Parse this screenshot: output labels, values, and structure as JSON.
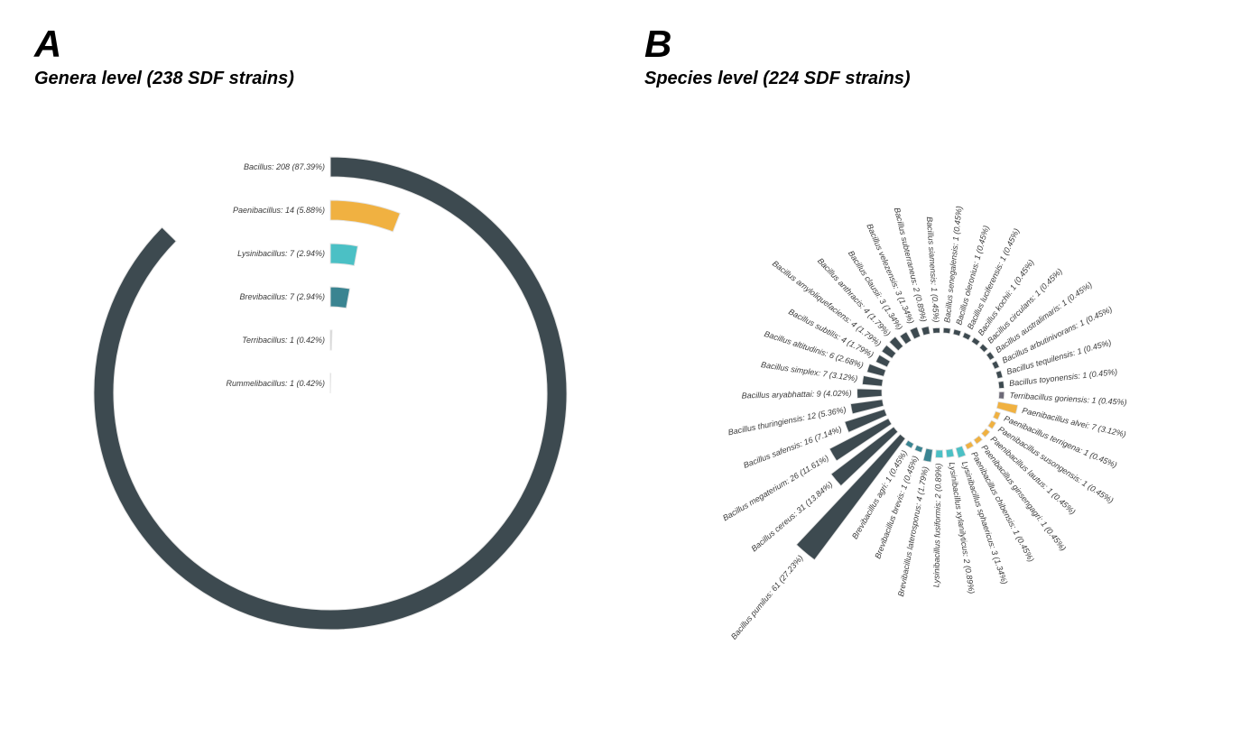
{
  "panel_a": {
    "letter": "A",
    "title": "Genera level (238  SDF strains)"
  },
  "panel_b": {
    "letter": "B",
    "title": "Species level (224 SDF strains)"
  },
  "chart_data": [
    {
      "type": "radial-bar",
      "title": "Genera level (238  SDF strains)",
      "max_value": 238,
      "colors": {
        "Bacillus": "#3d4a50",
        "Paenibacillus": "#f0b141",
        "Lysinibacillus": "#4bc0c5",
        "Brevibacillus": "#3a8491",
        "Terribacillus": "#cccccc",
        "Rummelibacillus": "#dddddd"
      },
      "bars": [
        {
          "genus": "Bacillus",
          "label": "Bacillus: 208 (87.39%)",
          "value": 208,
          "percent": 87.39
        },
        {
          "genus": "Paenibacillus",
          "label": "Paenibacillus: 14 (5.88%)",
          "value": 14,
          "percent": 5.88
        },
        {
          "genus": "Lysinibacillus",
          "label": "Lysinibacillus: 7 (2.94%)",
          "value": 7,
          "percent": 2.94
        },
        {
          "genus": "Brevibacillus",
          "label": "Brevibacillus: 7 (2.94%)",
          "value": 7,
          "percent": 2.94
        },
        {
          "genus": "Terribacillus",
          "label": "Terribacillus: 1 (0.42%)",
          "value": 1,
          "percent": 0.42
        },
        {
          "genus": "Rummelibacillus",
          "label": "Rummelibacillus: 1 (0.42%)",
          "value": 1,
          "percent": 0.42
        }
      ]
    },
    {
      "type": "circular-bar",
      "title": "Species level (224 SDF strains)",
      "max_value": 61,
      "colors": {
        "Bacillus": "#3d4a50",
        "Paenibacillus": "#f0b141",
        "Lysinibacillus": "#4bc0c5",
        "Brevibacillus": "#3a8491",
        "Terribacillus": "#6d6a78"
      },
      "bars": [
        {
          "genus": "Bacillus",
          "label": "Bacillus pumilus: 61 (27.23%)",
          "value": 61,
          "percent": 27.23
        },
        {
          "genus": "Bacillus",
          "label": "Bacillus cereus: 31 (13.84%)",
          "value": 31,
          "percent": 13.84
        },
        {
          "genus": "Bacillus",
          "label": "Bacillus megaterium: 26 (11.61%)",
          "value": 26,
          "percent": 11.61
        },
        {
          "genus": "Bacillus",
          "label": "Bacillus safensis: 16 (7.14%)",
          "value": 16,
          "percent": 7.14
        },
        {
          "genus": "Bacillus",
          "label": "Bacillus thuringiensis: 12 (5.36%)",
          "value": 12,
          "percent": 5.36
        },
        {
          "genus": "Bacillus",
          "label": "Bacillus aryabhattai: 9 (4.02%)",
          "value": 9,
          "percent": 4.02
        },
        {
          "genus": "Bacillus",
          "label": "Bacillus simplex: 7 (3.12%)",
          "value": 7,
          "percent": 3.12
        },
        {
          "genus": "Bacillus",
          "label": "Bacillus altitudinis: 6 (2.68%)",
          "value": 6,
          "percent": 2.68
        },
        {
          "genus": "Bacillus",
          "label": "Bacillus subtilis: 4 (1.79%)",
          "value": 4,
          "percent": 1.79
        },
        {
          "genus": "Bacillus",
          "label": "Bacillus amyloliquefaciens: 4 (1.79%)",
          "value": 4,
          "percent": 1.79
        },
        {
          "genus": "Bacillus",
          "label": "Bacillus anthracis: 4 (1.79%)",
          "value": 4,
          "percent": 1.79
        },
        {
          "genus": "Bacillus",
          "label": "Bacillus clausii: 3 (1.34%)",
          "value": 3,
          "percent": 1.34
        },
        {
          "genus": "Bacillus",
          "label": "Bacillus velezensis: 3 (1.34%)",
          "value": 3,
          "percent": 1.34
        },
        {
          "genus": "Bacillus",
          "label": "Bacillus subterraneus: 2 (0.89%)",
          "value": 2,
          "percent": 0.89
        },
        {
          "genus": "Bacillus",
          "label": "Bacillus siamensis: 1 (0.45%)",
          "value": 1,
          "percent": 0.45
        },
        {
          "genus": "Bacillus",
          "label": "Bacillus senegalensis: 1 (0.45%)",
          "value": 1,
          "percent": 0.45
        },
        {
          "genus": "Bacillus",
          "label": "Bacillus oleronius: 1 (0.45%)",
          "value": 1,
          "percent": 0.45
        },
        {
          "genus": "Bacillus",
          "label": "Bacillus luciferensis: 1 (0.45%)",
          "value": 1,
          "percent": 0.45
        },
        {
          "genus": "Bacillus",
          "label": "Bacillus kochii: 1 (0.45%)",
          "value": 1,
          "percent": 0.45
        },
        {
          "genus": "Bacillus",
          "label": "Bacillus circulans: 1 (0.45%)",
          "value": 1,
          "percent": 0.45
        },
        {
          "genus": "Bacillus",
          "label": "Bacillus australimaris: 1 (0.45%)",
          "value": 1,
          "percent": 0.45
        },
        {
          "genus": "Bacillus",
          "label": "Bacillus arbutinivorans: 1 (0.45%)",
          "value": 1,
          "percent": 0.45
        },
        {
          "genus": "Bacillus",
          "label": "Bacillus tequilensis: 1 (0.45%)",
          "value": 1,
          "percent": 0.45
        },
        {
          "genus": "Bacillus",
          "label": "Bacillus toyonensis: 1 (0.45%)",
          "value": 1,
          "percent": 0.45
        },
        {
          "genus": "Terribacillus",
          "label": "Terribacillus goriensis: 1 (0.45%)",
          "value": 1,
          "percent": 0.45
        },
        {
          "genus": "Paenibacillus",
          "label": "Paenibacillus alvei: 7 (3.12%)",
          "value": 7,
          "percent": 3.12
        },
        {
          "genus": "Paenibacillus",
          "label": "Paenibacillus terrigena: 1 (0.45%)",
          "value": 1,
          "percent": 0.45
        },
        {
          "genus": "Paenibacillus",
          "label": "Paenibacillus susongensis: 1 (0.45%)",
          "value": 1,
          "percent": 0.45
        },
        {
          "genus": "Paenibacillus",
          "label": "Paenibacillus lautus: 1 (0.45%)",
          "value": 1,
          "percent": 0.45
        },
        {
          "genus": "Paenibacillus",
          "label": "Paenibacillus ginsengagri: 1 (0.45%)",
          "value": 1,
          "percent": 0.45
        },
        {
          "genus": "Paenibacillus",
          "label": "Paenibacillus chibensis: 1 (0.45%)",
          "value": 1,
          "percent": 0.45
        },
        {
          "genus": "Lysinibacillus",
          "label": "Lysinibacillus sphaericus: 3 (1.34%)",
          "value": 3,
          "percent": 1.34
        },
        {
          "genus": "Lysinibacillus",
          "label": "Lysinibacillus xylanilyticus: 2 (0.89%)",
          "value": 2,
          "percent": 0.89
        },
        {
          "genus": "Lysinibacillus",
          "label": "Lysinibacillus fusiformis: 2 (0.89%)",
          "value": 2,
          "percent": 0.89
        },
        {
          "genus": "Brevibacillus",
          "label": "Brevibacillus laterosporus: 4 (1.79%)",
          "value": 4,
          "percent": 1.79
        },
        {
          "genus": "Brevibacillus",
          "label": "Brevibacillus brevis: 1 (0.45%)",
          "value": 1,
          "percent": 0.45
        },
        {
          "genus": "Brevibacillus",
          "label": "Brevibacillus agri: 1 (0.45%)",
          "value": 1,
          "percent": 0.45
        }
      ]
    }
  ]
}
